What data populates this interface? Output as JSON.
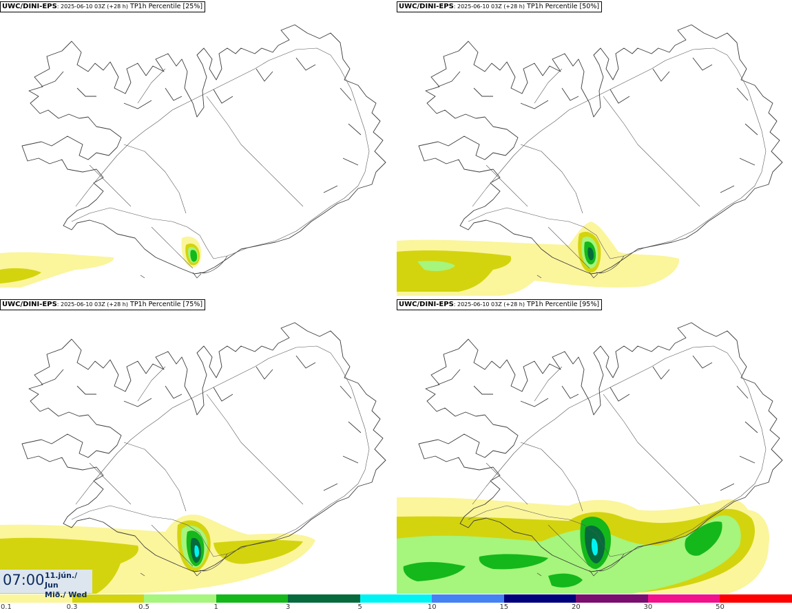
{
  "panels": [
    {
      "model": "UWC/DINI-EPS",
      "run": ": 2025-06-10 03Z (+28 h)",
      "variable": "TP1h Percentile [25%]"
    },
    {
      "model": "UWC/DINI-EPS",
      "run": ": 2025-06-10 03Z (+28 h)",
      "variable": "TP1h Percentile [50%]"
    },
    {
      "model": "UWC/DINI-EPS",
      "run": ": 2025-06-10 03Z (+28 h)",
      "variable": "TP1h Percentile [75%]"
    },
    {
      "model": "UWC/DINI-EPS",
      "run": ": 2025-06-10 03Z (+28 h)",
      "variable": "TP1h Percentile [95%]"
    }
  ],
  "valid_time": {
    "time": "07:00",
    "date_line1": "11.jún./ Jun",
    "date_line2": "Mið./ Wed"
  },
  "legend": {
    "labels": [
      "0.1",
      "0.3",
      "0.5",
      "1",
      "3",
      "5",
      "10",
      "15",
      "20",
      "30",
      "50"
    ],
    "colors": [
      "#fbf59c",
      "#d3d40e",
      "#a6f57c",
      "#14b81a",
      "#066a3c",
      "#00f3f3",
      "#4482f3",
      "#00007a",
      "#7a0e6e",
      "#f2118b",
      "#ff0000"
    ]
  },
  "colors": {
    "coast": "#3a3a3a",
    "roads": "#555555",
    "precip_0_1": "#fbf59c",
    "precip_0_3": "#d3d40e",
    "precip_0_5": "#a6f57c",
    "precip_1": "#14b81a",
    "precip_3": "#066a3c",
    "precip_5": "#00f3f3"
  }
}
